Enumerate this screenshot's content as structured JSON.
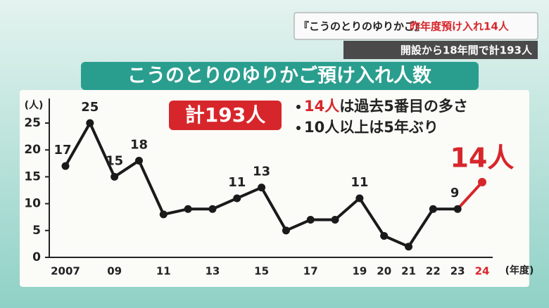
{
  "header": {
    "program_title": "『こうのとりのゆりかご』",
    "headline": "昨年度預け入れ14人",
    "subhead": "開設から18年間で計193人"
  },
  "chart_data": {
    "type": "line",
    "title": "こうのとりのゆりかご預け入れ人数",
    "y_unit": "(人)",
    "x_unit": "(年度)",
    "total_badge": "計193人",
    "notes": [
      {
        "highlight": "14人",
        "text": "は過去5番目の多さ"
      },
      {
        "highlight": null,
        "text": "10人以上は5年ぶり"
      }
    ],
    "categories": [
      "2007",
      null,
      "09",
      null,
      "11",
      null,
      "13",
      null,
      "15",
      null,
      "17",
      null,
      "19",
      "20",
      "21",
      "22",
      "23",
      "24"
    ],
    "series": [
      {
        "name": "預け入れ人数",
        "color": "#1a1a1a",
        "last_color": "#d7262b",
        "values": [
          17,
          25,
          15,
          18,
          8,
          9,
          9,
          11,
          13,
          5,
          7,
          7,
          11,
          4,
          2,
          9,
          9,
          14
        ],
        "value_labels": [
          "17",
          "25",
          "15",
          "18",
          null,
          null,
          null,
          "11",
          "13",
          null,
          null,
          null,
          "11",
          null,
          null,
          null,
          "9",
          "14人"
        ]
      }
    ],
    "ylim": [
      0,
      29
    ],
    "yticks": [
      0,
      5,
      10,
      15,
      20,
      25
    ]
  }
}
